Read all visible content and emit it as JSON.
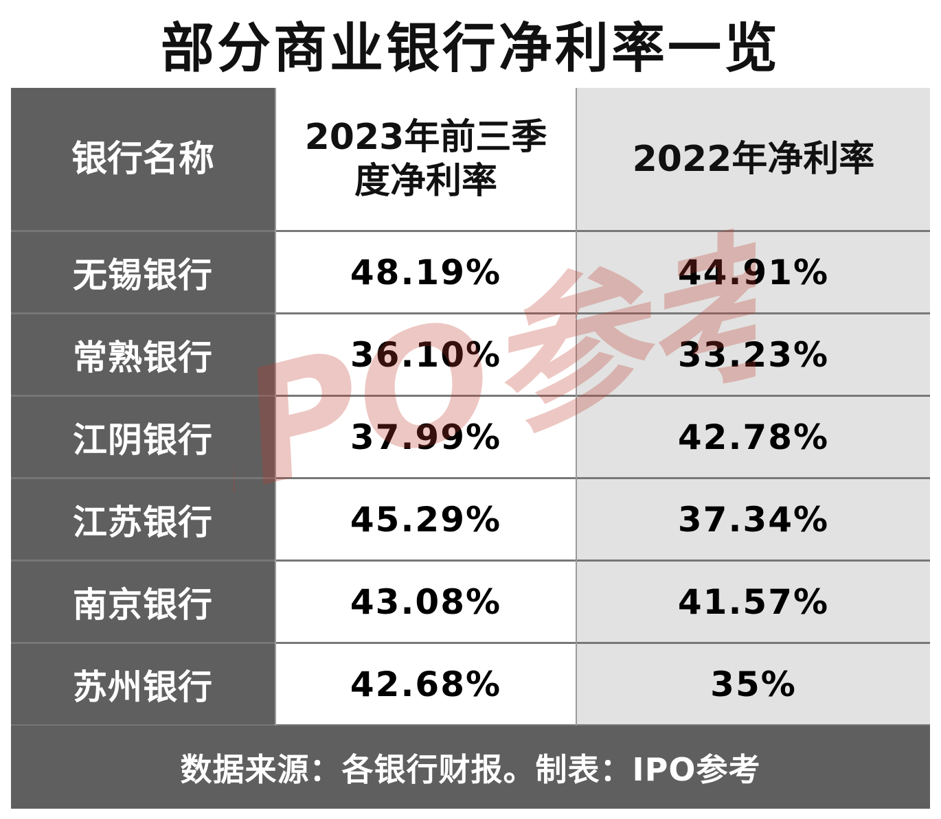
{
  "title": "部分商业银行净利率一览",
  "table": {
    "headers": {
      "name": "银行名称",
      "col_2023": "2023年前三季\n度净利率",
      "col_2022": "2022年净利率"
    },
    "rows": [
      {
        "name": "无锡银行",
        "v2023": "48.19%",
        "v2022": "44.91%"
      },
      {
        "name": "常熟银行",
        "v2023": "36.10%",
        "v2022": "33.23%"
      },
      {
        "name": "江阴银行",
        "v2023": "37.99%",
        "v2022": "42.78%"
      },
      {
        "name": "江苏银行",
        "v2023": "45.29%",
        "v2022": "37.34%"
      },
      {
        "name": "南京银行",
        "v2023": "43.08%",
        "v2022": "41.57%"
      },
      {
        "name": "苏州银行",
        "v2023": "42.68%",
        "v2022": "35%"
      }
    ]
  },
  "footer": "数据来源：各银行财报。制表：IPO参考",
  "watermark": {
    "text": "IPO参考",
    "color": "#c0392b"
  },
  "colors": {
    "dark_column": "#5f5f5f",
    "light_column": "#e2e2e2",
    "white_column": "#ffffff"
  }
}
